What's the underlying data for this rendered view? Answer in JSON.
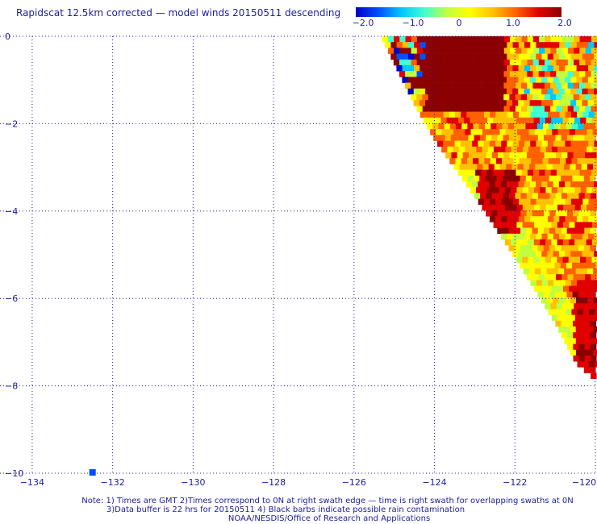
{
  "title": "Rapidscat 12.5km corrected — model winds 20150511 descending",
  "colorbar": {
    "ticks": [
      "−2.0",
      "−1.0",
      "0",
      "1.0",
      "2.0"
    ],
    "tick_values": [
      -2,
      -1,
      0,
      1,
      2
    ],
    "colors": [
      "#0000c8",
      "#0050ff",
      "#00c8ff",
      "#40ffd0",
      "#c0ff40",
      "#ffff00",
      "#ffc000",
      "#ff6000",
      "#e00000",
      "#8b0000"
    ]
  },
  "chart_data": {
    "type": "heatmap",
    "title": "Rapidscat 12.5km corrected — model winds 20150511 descending",
    "x_ticks": [
      "−134",
      "−132",
      "−130",
      "−128",
      "−126",
      "−124",
      "−122",
      "−120"
    ],
    "x_values": [
      -134,
      -132,
      -130,
      -128,
      -126,
      -124,
      -122,
      -120
    ],
    "y_ticks": [
      "0",
      "−2",
      "−4",
      "−6",
      "−8",
      "−10"
    ],
    "y_values": [
      0,
      -2,
      -4,
      -6,
      -8,
      -10
    ],
    "xlim": [
      -134.8,
      -120
    ],
    "ylim": [
      -10,
      0
    ],
    "grid": true,
    "swath_edge": [
      [
        -125.3,
        0
      ],
      [
        -124.5,
        -1.5
      ],
      [
        -124,
        -2.3
      ],
      [
        -123,
        -3.6
      ],
      [
        -122,
        -5.0
      ],
      [
        -121,
        -6.5
      ],
      [
        -120.5,
        -7.4
      ],
      [
        -120,
        -7.8
      ]
    ],
    "isolated_cell": {
      "lon": -132.5,
      "lat": -10,
      "value": -1.3
    }
  },
  "notes": [
    "Note: 1) Times are GMT 2)Times correspond to 0N at right swath edge — time is right swath for overlapping swaths at 0N",
    "3)Data buffer is 22 hrs for 20150511 4) Black barbs indicate possible rain contamination",
    "NOAA/NESDIS/Office of Research and Applications"
  ]
}
